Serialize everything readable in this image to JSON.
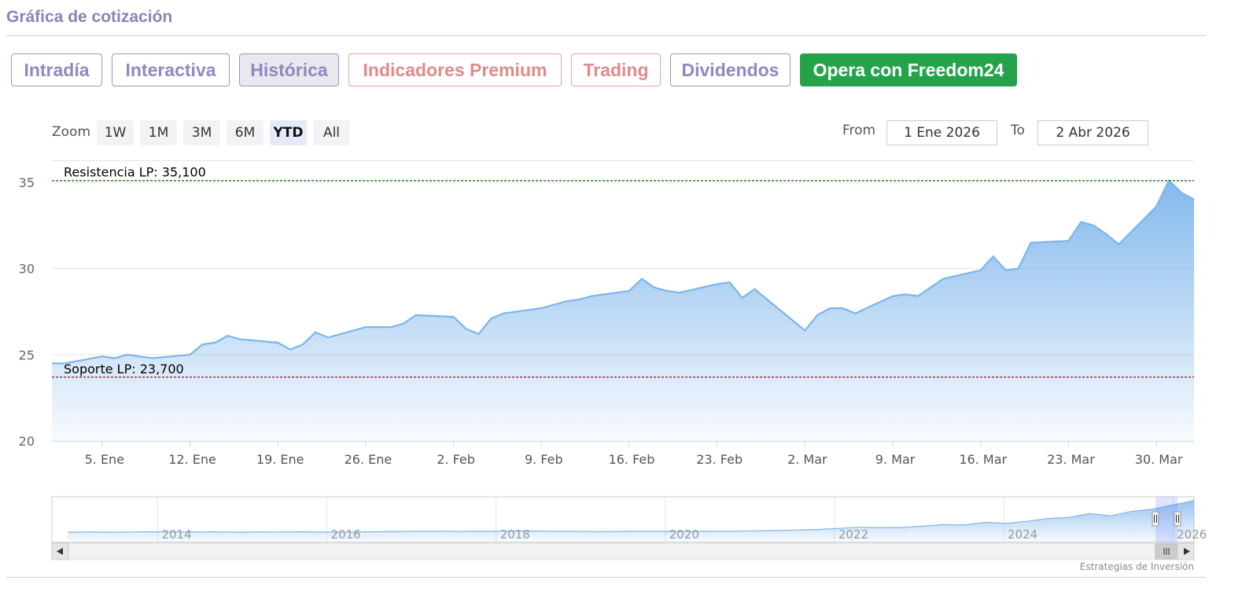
{
  "section_title": "Gráfica de cotización",
  "tabs": [
    {
      "label": "Intradía"
    },
    {
      "label": "Interactiva"
    },
    {
      "label": "Histórica"
    },
    {
      "label": "Indicadores Premium"
    },
    {
      "label": "Trading"
    },
    {
      "label": "Dividendos"
    },
    {
      "label": "Opera con Freedom24"
    }
  ],
  "colors": {
    "tab_border": "#9a96c4",
    "tab_text": "#8f89c0",
    "premium_text": "#e08b8b",
    "cta_bg": "#24a34a",
    "series": "#7cb5ec",
    "support": "#8b0000",
    "resistance": "#006400"
  },
  "range_selector": {
    "zoom_label": "Zoom",
    "buttons": [
      "1W",
      "1M",
      "3M",
      "6M",
      "YTD",
      "All"
    ],
    "selected": "YTD",
    "from_label": "From",
    "from_value": "1 Ene 2026",
    "to_label": "To",
    "to_value": "2 Abr 2026"
  },
  "credits": "Estrategias de Inversión",
  "chart_data": {
    "type": "area",
    "x_start": "2026-01-01",
    "x_end": "2026-04-02",
    "x_ticks": [
      {
        "date": "2026-01-05",
        "label": "5. Ene"
      },
      {
        "date": "2026-01-12",
        "label": "12. Ene"
      },
      {
        "date": "2026-01-19",
        "label": "19. Ene"
      },
      {
        "date": "2026-01-26",
        "label": "26. Ene"
      },
      {
        "date": "2026-02-02",
        "label": "2. Feb"
      },
      {
        "date": "2026-02-09",
        "label": "9. Feb"
      },
      {
        "date": "2026-02-16",
        "label": "16. Feb"
      },
      {
        "date": "2026-02-23",
        "label": "23. Feb"
      },
      {
        "date": "2026-03-02",
        "label": "2. Mar"
      },
      {
        "date": "2026-03-09",
        "label": "9. Mar"
      },
      {
        "date": "2026-03-16",
        "label": "16. Mar"
      },
      {
        "date": "2026-03-23",
        "label": "23. Mar"
      },
      {
        "date": "2026-03-30",
        "label": "30. Mar"
      }
    ],
    "y_ticks": [
      20,
      25,
      30,
      35
    ],
    "ylim": [
      20,
      36
    ],
    "grid": true,
    "series": [
      {
        "x": [
          "2026-01-01",
          "2026-01-02",
          "2026-01-05",
          "2026-01-06",
          "2026-01-07",
          "2026-01-08",
          "2026-01-09",
          "2026-01-12",
          "2026-01-13",
          "2026-01-14",
          "2026-01-15",
          "2026-01-16",
          "2026-01-19",
          "2026-01-20",
          "2026-01-21",
          "2026-01-22",
          "2026-01-23",
          "2026-01-26",
          "2026-01-27",
          "2026-01-28",
          "2026-01-29",
          "2026-01-30",
          "2026-02-02",
          "2026-02-03",
          "2026-02-04",
          "2026-02-05",
          "2026-02-06",
          "2026-02-09",
          "2026-02-10",
          "2026-02-11",
          "2026-02-12",
          "2026-02-13",
          "2026-02-16",
          "2026-02-17",
          "2026-02-18",
          "2026-02-19",
          "2026-02-20",
          "2026-02-23",
          "2026-02-24",
          "2026-02-25",
          "2026-02-26",
          "2026-02-27",
          "2026-03-02",
          "2026-03-03",
          "2026-03-04",
          "2026-03-05",
          "2026-03-06",
          "2026-03-09",
          "2026-03-10",
          "2026-03-11",
          "2026-03-12",
          "2026-03-13",
          "2026-03-16",
          "2026-03-17",
          "2026-03-18",
          "2026-03-19",
          "2026-03-20",
          "2026-03-23",
          "2026-03-24",
          "2026-03-25",
          "2026-03-26",
          "2026-03-27",
          "2026-03-30",
          "2026-03-31",
          "2026-04-01",
          "2026-04-02"
        ],
        "y": [
          24.5,
          24.5,
          24.9,
          24.8,
          25.0,
          24.9,
          24.8,
          25.0,
          25.6,
          25.7,
          26.1,
          25.9,
          25.7,
          25.3,
          25.6,
          26.3,
          26.0,
          26.6,
          26.6,
          26.6,
          26.8,
          27.3,
          27.2,
          26.5,
          26.2,
          27.1,
          27.4,
          27.7,
          27.9,
          28.1,
          28.2,
          28.4,
          28.7,
          29.4,
          28.9,
          28.7,
          28.6,
          29.1,
          29.2,
          28.3,
          28.8,
          28.2,
          26.4,
          27.3,
          27.7,
          27.7,
          27.4,
          28.4,
          28.5,
          28.4,
          28.9,
          29.4,
          29.9,
          30.7,
          29.9,
          30.0,
          31.5,
          31.6,
          32.7,
          32.5,
          32.0,
          31.4,
          33.6,
          35.1,
          34.4,
          34.0
        ]
      }
    ],
    "support": {
      "label": "Soporte LP: 23,700",
      "value": 23.7
    },
    "resistance": {
      "label": "Resistencia LP: 35,100",
      "value": 35.1
    },
    "navigator": {
      "x_labels": [
        "2014",
        "2016",
        "2018",
        "2020",
        "2022",
        "2024",
        "2026"
      ],
      "x_start_year": 2012.75,
      "x_end_year": 2026.25,
      "values": [
        5.0,
        5.1,
        5.0,
        5.2,
        5.3,
        5.2,
        5.1,
        5.3,
        5.0,
        5.1,
        5.2,
        5.3,
        5.1,
        5.0,
        5.2,
        5.4,
        5.6,
        5.8,
        5.9,
        5.7,
        5.8,
        6.0,
        6.1,
        5.9,
        5.8,
        5.6,
        5.5,
        5.8,
        5.9,
        5.7,
        5.6,
        5.8,
        5.9,
        6.3,
        6.5,
        7.0,
        7.5,
        8.5,
        9.5,
        9.0,
        9.3,
        10.5,
        12.0,
        11.5,
        14.0,
        13.0,
        15.0,
        17.5,
        18.5,
        22.0,
        20.0,
        24.0,
        26.0,
        30.0,
        34.0
      ]
    }
  }
}
